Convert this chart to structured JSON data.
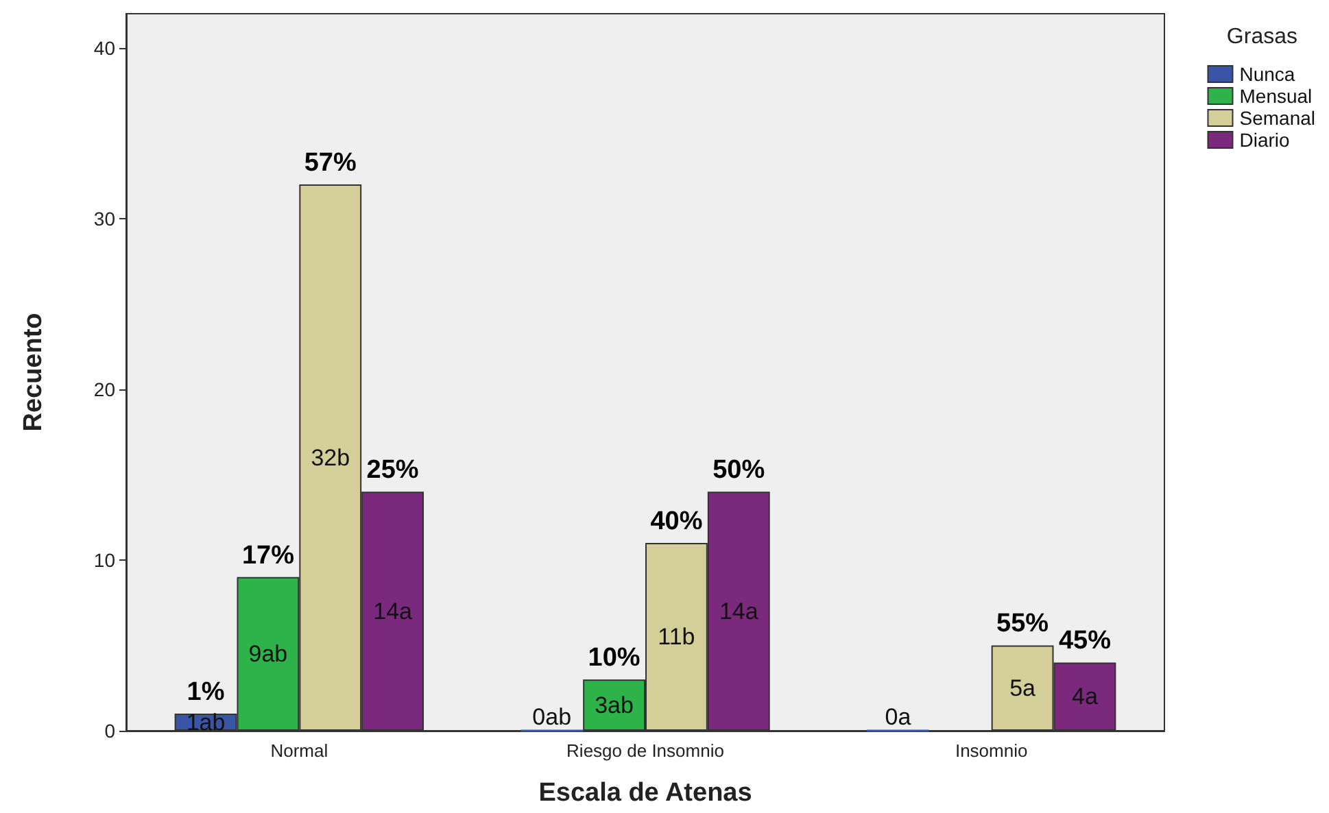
{
  "chart_data": {
    "type": "bar",
    "xlabel": "Escala de Atenas",
    "ylabel": "Recuento",
    "legend_title": "Grasas",
    "categories": [
      "Normal",
      "Riesgo de Insomnio",
      "Insomnio"
    ],
    "series": [
      {
        "name": "Nunca",
        "color": "#3a55a6",
        "values": [
          1,
          0,
          0
        ],
        "value_labels": [
          "1ab",
          "0ab",
          "0a"
        ]
      },
      {
        "name": "Mensual",
        "color": "#2eb34b",
        "values": [
          9,
          3,
          null
        ],
        "value_labels": [
          "9ab",
          "3ab",
          null
        ]
      },
      {
        "name": "Semanal",
        "color": "#d4cf98",
        "values": [
          32,
          11,
          5
        ],
        "value_labels": [
          "32b",
          "11b",
          "5a"
        ]
      },
      {
        "name": "Diario",
        "color": "#7b297c",
        "values": [
          14,
          14,
          4
        ],
        "value_labels": [
          "14a",
          "14a",
          "4a"
        ]
      }
    ],
    "annotations": [
      "1%",
      "17%",
      "57%",
      "25%",
      "10%",
      "40%",
      "50%",
      "55%",
      "45%"
    ],
    "ylim": [
      0,
      42
    ],
    "yticks": [
      0,
      10,
      20,
      30,
      40
    ],
    "grid": false,
    "legend": "top right"
  }
}
